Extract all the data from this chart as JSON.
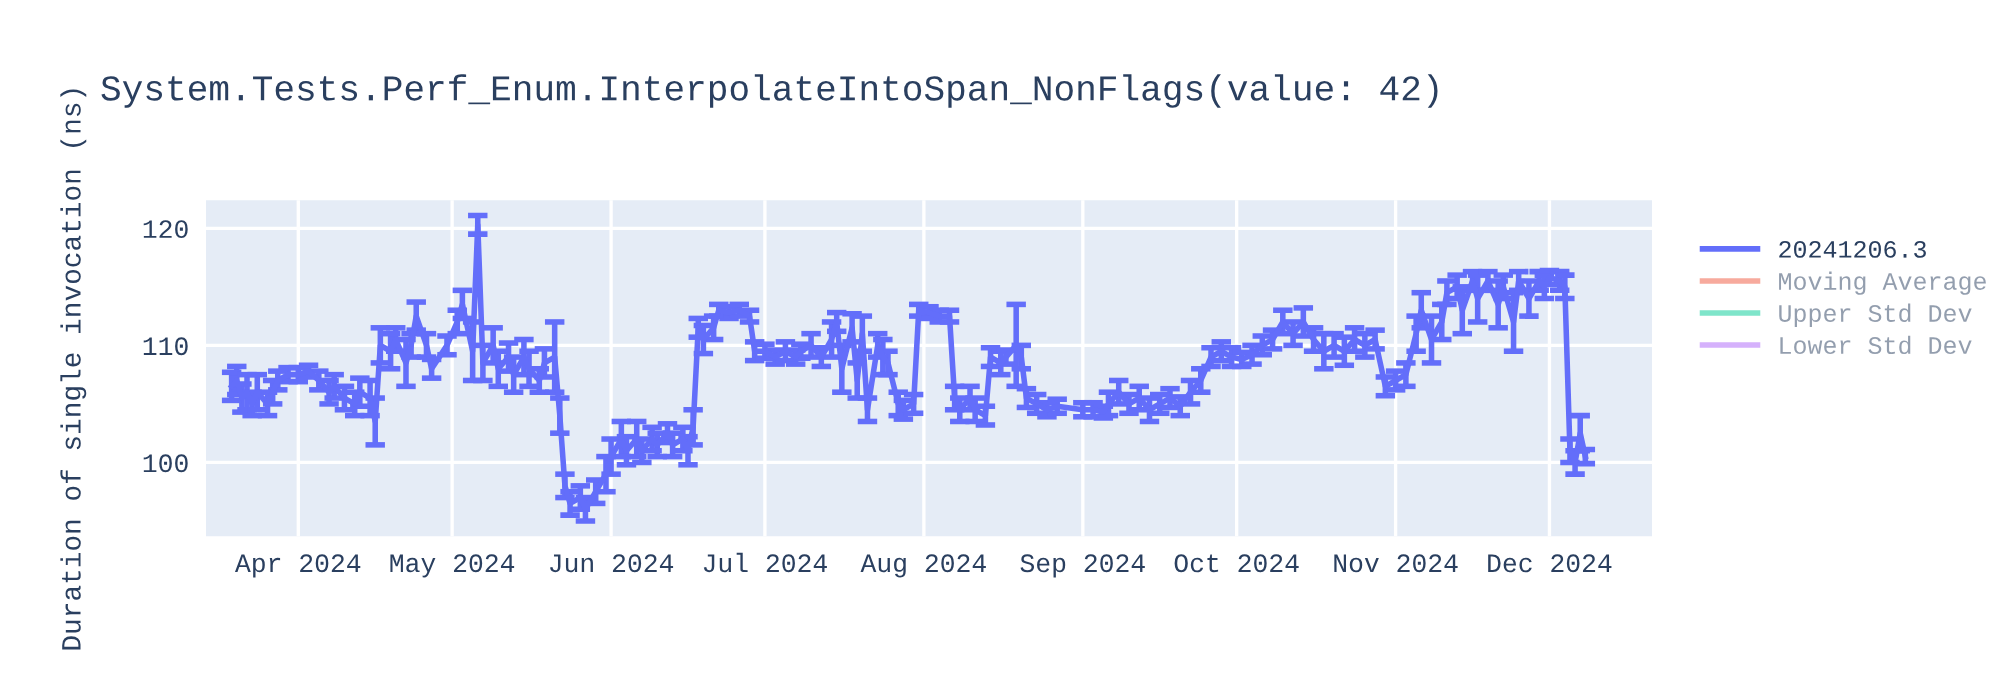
{
  "chart_data": {
    "type": "line",
    "title": "System.Tests.Perf_Enum.InterpolateIntoSpan_NonFlags(value: 42)",
    "ylabel": "Duration of single invocation (ns)",
    "xlim": [
      "2024-03-14",
      "2024-12-21"
    ],
    "xticks": [
      {
        "value": "2024-04-01",
        "label": "Apr 2024"
      },
      {
        "value": "2024-05-01",
        "label": "May 2024"
      },
      {
        "value": "2024-06-01",
        "label": "Jun 2024"
      },
      {
        "value": "2024-07-01",
        "label": "Jul 2024"
      },
      {
        "value": "2024-08-01",
        "label": "Aug 2024"
      },
      {
        "value": "2024-09-01",
        "label": "Sep 2024"
      },
      {
        "value": "2024-10-01",
        "label": "Oct 2024"
      },
      {
        "value": "2024-11-01",
        "label": "Nov 2024"
      },
      {
        "value": "2024-12-01",
        "label": "Dec 2024"
      }
    ],
    "ylim": [
      93.7,
      122.4
    ],
    "yticks": [
      100,
      110,
      120
    ],
    "grid": true,
    "legend": "right",
    "marker": "none",
    "line_style": "solid",
    "series": [
      {
        "name": "20241206.3",
        "color": "#636efa",
        "x": [
          "2024-03-19",
          "2024-03-20",
          "2024-03-21",
          "2024-03-22",
          "2024-03-23",
          "2024-03-24",
          "2024-03-26",
          "2024-03-27",
          "2024-03-28",
          "2024-03-30",
          "2024-04-01",
          "2024-04-03",
          "2024-04-05",
          "2024-04-07",
          "2024-04-08",
          "2024-04-10",
          "2024-04-12",
          "2024-04-13",
          "2024-04-15",
          "2024-04-16",
          "2024-04-17",
          "2024-04-19",
          "2024-04-20",
          "2024-04-22",
          "2024-04-23",
          "2024-04-24",
          "2024-04-26",
          "2024-04-27",
          "2024-04-30",
          "2024-05-02",
          "2024-05-03",
          "2024-05-05",
          "2024-05-06",
          "2024-05-07",
          "2024-05-09",
          "2024-05-10",
          "2024-05-12",
          "2024-05-13",
          "2024-05-15",
          "2024-05-16",
          "2024-05-18",
          "2024-05-19",
          "2024-05-21",
          "2024-05-22",
          "2024-05-23",
          "2024-05-24",
          "2024-05-26",
          "2024-05-27",
          "2024-05-29",
          "2024-05-31",
          "2024-06-01",
          "2024-06-03",
          "2024-06-04",
          "2024-06-06",
          "2024-06-07",
          "2024-06-09",
          "2024-06-10",
          "2024-06-12",
          "2024-06-13",
          "2024-06-15",
          "2024-06-16",
          "2024-06-17",
          "2024-06-18",
          "2024-06-19",
          "2024-06-21",
          "2024-06-22",
          "2024-06-24",
          "2024-06-26",
          "2024-06-28",
          "2024-06-29",
          "2024-07-01",
          "2024-07-03",
          "2024-07-05",
          "2024-07-07",
          "2024-07-08",
          "2024-07-10",
          "2024-07-12",
          "2024-07-14",
          "2024-07-15",
          "2024-07-16",
          "2024-07-18",
          "2024-07-19",
          "2024-07-20",
          "2024-07-21",
          "2024-07-23",
          "2024-07-24",
          "2024-07-25",
          "2024-07-27",
          "2024-07-28",
          "2024-07-30",
          "2024-07-31",
          "2024-08-02",
          "2024-08-04",
          "2024-08-06",
          "2024-08-07",
          "2024-08-08",
          "2024-08-10",
          "2024-08-11",
          "2024-08-13",
          "2024-08-14",
          "2024-08-16",
          "2024-08-17",
          "2024-08-19",
          "2024-08-20",
          "2024-08-21",
          "2024-08-23",
          "2024-08-25",
          "2024-08-27",
          "2024-09-01",
          "2024-09-03",
          "2024-09-05",
          "2024-09-06",
          "2024-09-08",
          "2024-09-10",
          "2024-09-12",
          "2024-09-14",
          "2024-09-16",
          "2024-09-18",
          "2024-09-20",
          "2024-09-22",
          "2024-09-24",
          "2024-09-26",
          "2024-09-28",
          "2024-09-30",
          "2024-10-02",
          "2024-10-04",
          "2024-10-06",
          "2024-10-08",
          "2024-10-10",
          "2024-10-12",
          "2024-10-14",
          "2024-10-16",
          "2024-10-18",
          "2024-10-20",
          "2024-10-22",
          "2024-10-24",
          "2024-10-26",
          "2024-10-28",
          "2024-10-30",
          "2024-11-01",
          "2024-11-03",
          "2024-11-05",
          "2024-11-06",
          "2024-11-08",
          "2024-11-10",
          "2024-11-11",
          "2024-11-13",
          "2024-11-14",
          "2024-11-16",
          "2024-11-17",
          "2024-11-19",
          "2024-11-21",
          "2024-11-22",
          "2024-11-24",
          "2024-11-25",
          "2024-11-27",
          "2024-11-29",
          "2024-11-30",
          "2024-12-01",
          "2024-12-03",
          "2024-12-04",
          "2024-12-05",
          "2024-12-06",
          "2024-12-07",
          "2024-12-08"
        ],
        "values": [
          106.5,
          107,
          105.5,
          106,
          105,
          106,
          105,
          106,
          107,
          107.5,
          107.5,
          107.8,
          107,
          106,
          106.5,
          105.5,
          105,
          106,
          105.5,
          103.5,
          110,
          109.5,
          110.5,
          108.5,
          110,
          112.5,
          110,
          108,
          110,
          112,
          113.5,
          109.5,
          120.3,
          108.5,
          110,
          108,
          109,
          107.5,
          109,
          108,
          107,
          108.5,
          109,
          104,
          98,
          96.5,
          97,
          96,
          97.5,
          99,
          100.5,
          102,
          101,
          102,
          101,
          102,
          101.5,
          102.5,
          101.5,
          102,
          101,
          103,
          111.5,
          110.5,
          111.5,
          113,
          112.8,
          113,
          112.5,
          109.5,
          109.5,
          109,
          109.5,
          109,
          109.5,
          110,
          109,
          110.5,
          112,
          108,
          111.5,
          107,
          111,
          104.5,
          110,
          109,
          108.5,
          105,
          104.5,
          105,
          113,
          112.8,
          112.5,
          112.5,
          105.5,
          104.5,
          105.5,
          104.5,
          104,
          109,
          108.5,
          109,
          110,
          109,
          105.5,
          105,
          104.5,
          104.8,
          104.5,
          104.5,
          104.3,
          105,
          106,
          105,
          105.5,
          104.5,
          105,
          105.5,
          104.8,
          106,
          107,
          109,
          109.5,
          109,
          108.8,
          109.2,
          110,
          110.5,
          112,
          111,
          112,
          110.5,
          109.5,
          110,
          109.5,
          110.5,
          110,
          110.5,
          106.5,
          107,
          107.5,
          111,
          113,
          110.5,
          112,
          114.5,
          115,
          113,
          115.5,
          114,
          115.5,
          113.5,
          115,
          112,
          115.5,
          114,
          115.5,
          115,
          115.8,
          115.5,
          115,
          101,
          100,
          102.5,
          100.5
        ],
        "errors": [
          1.2,
          1.2,
          1.2,
          1.5,
          1,
          1.5,
          1,
          1,
          0.8,
          0.6,
          0.6,
          0.5,
          0.8,
          1,
          1,
          1,
          1,
          1.2,
          1.5,
          2,
          1.5,
          1.5,
          1,
          2,
          1,
          1.2,
          1,
          0.8,
          0.8,
          1,
          1.2,
          2.5,
          0.8,
          1.5,
          1.5,
          1.5,
          1.2,
          1.5,
          1.5,
          1.5,
          1,
          1.2,
          3,
          1.5,
          1,
          1,
          1,
          1,
          1,
          1.5,
          1.5,
          1.5,
          1.2,
          1.5,
          1,
          1,
          1,
          0.8,
          1,
          1,
          1.2,
          1.5,
          0.8,
          1.2,
          1,
          0.5,
          0.5,
          0.5,
          0.5,
          0.8,
          0.6,
          0.6,
          0.8,
          0.6,
          0.6,
          1,
          0.8,
          1.5,
          0.8,
          2,
          1.2,
          1.5,
          1.5,
          1,
          1,
          1.5,
          1,
          1,
          0.8,
          0.8,
          0.5,
          0.5,
          0.5,
          0.5,
          1,
          1,
          1,
          1,
          0.8,
          0.8,
          1,
          0.6,
          3.5,
          1,
          0.8,
          0.8,
          0.6,
          0.6,
          0.6,
          0.6,
          0.5,
          1,
          1,
          0.8,
          1,
          1,
          0.8,
          0.8,
          0.8,
          1,
          1,
          0.8,
          0.8,
          0.8,
          0.6,
          0.8,
          0.8,
          0.8,
          1,
          1,
          1.2,
          1,
          1.5,
          1,
          1.2,
          1,
          1,
          0.8,
          0.8,
          0.8,
          1,
          1.5,
          1.5,
          2,
          1.5,
          1,
          1,
          2,
          0.8,
          2,
          0.8,
          2,
          1,
          2.5,
          0.8,
          1.5,
          0.8,
          1,
          0.6,
          0.8,
          1,
          1,
          1,
          1.5,
          0.6
        ]
      },
      {
        "name": "Moving Average",
        "color": "#ef553b"
      },
      {
        "name": "Upper Std Dev",
        "color": "#00cc96"
      },
      {
        "name": "Lower Std Dev",
        "color": "#ab63fa"
      }
    ]
  }
}
